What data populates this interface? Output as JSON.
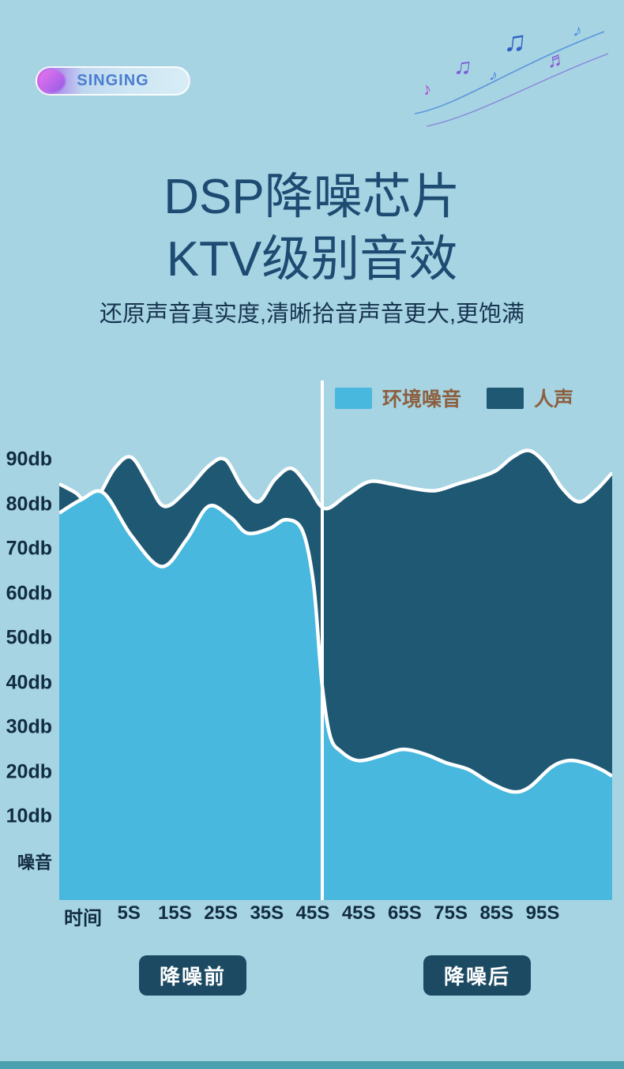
{
  "page": {
    "bg_color": "#a6d4e3"
  },
  "badge": {
    "label": "SINGING"
  },
  "decoration": {
    "notes": [
      {
        "glyph": "♪",
        "color": "#b44fd8"
      },
      {
        "glyph": "♫",
        "color": "#7a5bd6"
      },
      {
        "glyph": "♪",
        "color": "#4a86d8"
      },
      {
        "glyph": "♫",
        "color": "#2f5fc4"
      },
      {
        "glyph": "♬",
        "color": "#8a5ad0"
      },
      {
        "glyph": "♪",
        "color": "#4a90d9"
      }
    ]
  },
  "title": {
    "line1": "DSP降噪芯片",
    "line2": "KTV级别音效"
  },
  "subtitle": "还原声音真实度,清晰拾音声音更大,更饱满",
  "chart_data": {
    "type": "area",
    "title": "",
    "xlabel": "时间",
    "ylabel": "噪音",
    "ylim": [
      0,
      95
    ],
    "unit": "db",
    "grid": false,
    "legend_position": "top-right",
    "legend": [
      {
        "label": "环境噪音",
        "color": "#49b8de"
      },
      {
        "label": "人声",
        "color": "#1f5873"
      }
    ],
    "y_ticks": [
      "90db",
      "80db",
      "70db",
      "60db",
      "50db",
      "40db",
      "30db",
      "20db",
      "10db",
      "噪音"
    ],
    "x_ticks": [
      "时间",
      "5S",
      "15S",
      "25S",
      "35S",
      "45S",
      "45S",
      "65S",
      "75S",
      "85S",
      "95S"
    ],
    "divider_x": 47.6,
    "before_region_label": "降噪前",
    "after_region_label": "降噪后",
    "series": [
      {
        "name": "人声",
        "color": "#1f5873",
        "x": [
          0,
          3,
          6,
          10,
          13,
          16,
          19,
          23,
          27,
          30,
          33,
          36,
          39,
          42,
          45,
          48,
          52,
          56,
          60,
          64,
          68,
          72,
          76,
          79,
          82,
          85,
          88,
          91,
          94,
          97,
          100
        ],
        "values": [
          84.5,
          82.5,
          80,
          88,
          90.5,
          85,
          79.5,
          83,
          88.5,
          90,
          84,
          80.5,
          85.5,
          88,
          84,
          79,
          82,
          85,
          84.5,
          83.5,
          83,
          84.5,
          86,
          87.5,
          90.5,
          92,
          89,
          83.5,
          80.5,
          83,
          87
        ]
      },
      {
        "name": "环境噪音",
        "color": "#49b8de",
        "x": [
          0,
          4,
          8,
          13,
          18.5,
          23,
          27,
          31,
          34,
          38,
          41,
          44,
          46,
          47.5,
          49,
          51,
          54,
          58,
          62,
          66,
          70,
          74,
          78,
          82,
          85,
          89,
          92,
          95,
          98,
          100
        ],
        "values": [
          78,
          81,
          82.5,
          73,
          66,
          72,
          79.5,
          77,
          73.5,
          74.5,
          76.5,
          74,
          62,
          40,
          28,
          24.5,
          22.5,
          23.5,
          25,
          24,
          22,
          20.5,
          17.5,
          15.5,
          16.5,
          21,
          22.5,
          22,
          20.5,
          19
        ]
      }
    ]
  },
  "footer": {
    "before_label": "降噪前",
    "after_label": "降噪后"
  },
  "colors": {
    "background": "#a6d4e3",
    "title_text": "#1d4b72",
    "axis_text": "#122c42",
    "legend_text": "#8c5f3f",
    "voice_area": "#1f5873",
    "noise_area": "#49b8de",
    "divider": "#ffffff",
    "pill_bg": "#1c4a63",
    "pill_text": "#ffffff"
  }
}
